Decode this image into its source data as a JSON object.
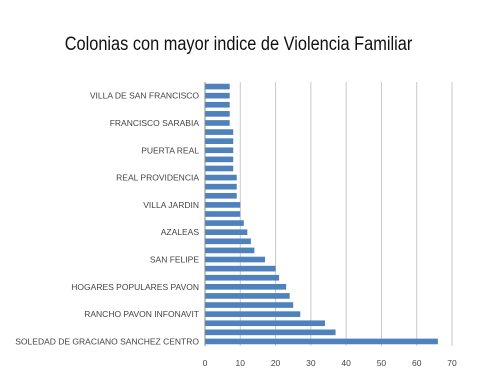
{
  "chart_data": {
    "type": "bar",
    "orientation": "horizontal",
    "title": "Colonias con mayor indice de Violencia Familiar",
    "xlabel": "",
    "ylabel": "",
    "xlim": [
      0,
      70
    ],
    "x_ticks": [
      "0",
      "10",
      "20",
      "30",
      "40",
      "50",
      "60",
      "70"
    ],
    "grid": "vertical",
    "bar_color": "#4f81bd",
    "categories_bottom_to_top": [
      "SOLEDAD DE GRACIANO SANCHEZ CENTRO",
      "",
      "",
      "RANCHO PAVON INFONAVIT",
      "",
      "",
      "HOGARES POPULARES PAVON",
      "",
      "",
      "SAN FELIPE",
      "",
      "",
      "AZALEAS",
      "",
      "",
      "VILLA JARDIN",
      "",
      "",
      "REAL PROVIDENCIA",
      "",
      "",
      "PUERTA REAL",
      "",
      "",
      "FRANCISCO SARABIA",
      "",
      "",
      "VILLA DE SAN FRANCISCO",
      ""
    ],
    "values_bottom_to_top": [
      66,
      37,
      34,
      27,
      25,
      24,
      23,
      21,
      20,
      17,
      14,
      13,
      12,
      11,
      10,
      10,
      9,
      9,
      9,
      8,
      8,
      8,
      8,
      8,
      7,
      7,
      7,
      7,
      7
    ],
    "labeled_categories": [
      "VILLA DE SAN FRANCISCO",
      "FRANCISCO SARABIA",
      "PUERTA REAL",
      "REAL PROVIDENCIA",
      "VILLA JARDIN",
      "AZALEAS",
      "SAN FELIPE",
      "HOGARES POPULARES PAVON",
      "RANCHO PAVON INFONAVIT",
      "SOLEDAD DE GRACIANO SANCHEZ CENTRO"
    ]
  }
}
